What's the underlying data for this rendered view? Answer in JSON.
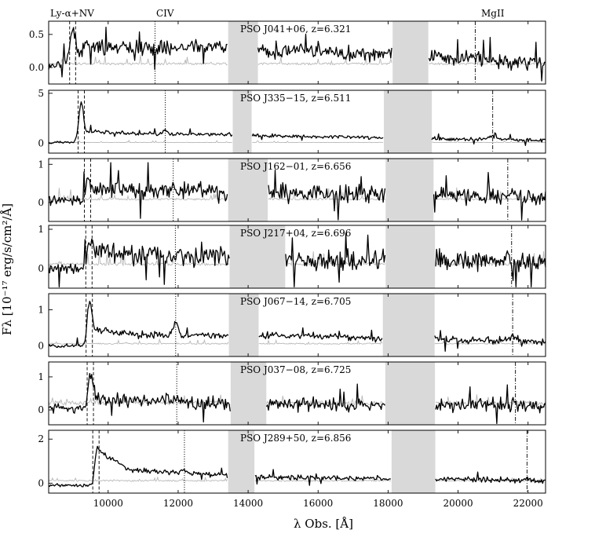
{
  "chart_data": {
    "type": "line",
    "xlabel": "λ Obs. [Å]",
    "ylabel": "Fλ [10⁻¹⁷ erg/s/cm²/Å]",
    "xlim": [
      8300,
      22500
    ],
    "xticks": [
      10000,
      12000,
      14000,
      16000,
      18000,
      20000,
      22000
    ],
    "line_labels": [
      "Ly-α+NV",
      "CIV",
      "MgII"
    ],
    "panels": [
      {
        "name": "PSO J041+06, z=6.321",
        "ylim": [
          -0.25,
          0.7
        ],
        "yticks": [
          0.0,
          0.5
        ],
        "ytick_labels": [
          "0.0",
          "0.5"
        ],
        "lines": [
          8900,
          9070,
          11340,
          20490
        ],
        "gaps": [
          [
            13430,
            14280
          ],
          [
            18130,
            19150
          ]
        ],
        "cont": [
          [
            8300,
            0.0
          ],
          [
            9000,
            0.15
          ],
          [
            9300,
            0.3
          ],
          [
            11000,
            0.3
          ],
          [
            13400,
            0.32
          ],
          [
            14300,
            0.26
          ],
          [
            18000,
            0.21
          ],
          [
            19200,
            0.16
          ],
          [
            22500,
            0.07
          ]
        ],
        "err_level": 0.04,
        "noise": 0.09,
        "lya_peak": 0.45,
        "civ_peak": 0.0,
        "mgii_peak": 0.05
      },
      {
        "name": "PSO J335−15, z=6.511",
        "ylim": [
          -1.0,
          5.3
        ],
        "yticks": [
          0,
          5
        ],
        "ytick_labels": [
          "0",
          "5"
        ],
        "lines": [
          9140,
          9320,
          11630,
          20990
        ],
        "gaps": [
          [
            13560,
            14100
          ],
          [
            17880,
            19250
          ]
        ],
        "cont": [
          [
            8300,
            0.05
          ],
          [
            9000,
            0.1
          ],
          [
            9500,
            1.2
          ],
          [
            11000,
            0.9
          ],
          [
            13500,
            0.85
          ],
          [
            14200,
            0.75
          ],
          [
            17800,
            0.55
          ],
          [
            19300,
            0.45
          ],
          [
            22500,
            0.3
          ]
        ],
        "err_level": 0.05,
        "noise": 0.15,
        "lya_peak": 3.5,
        "civ_peak": 0.5,
        "mgii_peak": 0.3
      },
      {
        "name": "PSO J162−01, z=6.656",
        "ylim": [
          -0.5,
          1.15
        ],
        "yticks": [
          0,
          1
        ],
        "ytick_labels": [
          "0",
          "1"
        ],
        "lines": [
          9320,
          9500,
          11860,
          21420
        ],
        "gaps": [
          [
            13430,
            14560
          ],
          [
            17930,
            19300
          ]
        ],
        "cont": [
          [
            8300,
            0.05
          ],
          [
            9300,
            0.05
          ],
          [
            9500,
            0.35
          ],
          [
            12000,
            0.3
          ],
          [
            13400,
            0.28
          ],
          [
            14600,
            0.25
          ],
          [
            18000,
            0.2
          ],
          [
            19300,
            0.18
          ],
          [
            22500,
            0.15
          ]
        ],
        "err_level": 0.06,
        "noise": 0.2,
        "lya_peak": 0.4,
        "civ_peak": 0.1,
        "mgii_peak": 0.05
      },
      {
        "name": "PSO J217+04, z=6.696",
        "ylim": [
          -0.5,
          1.1
        ],
        "yticks": [
          0,
          1
        ],
        "ytick_labels": [
          "0",
          "1"
        ],
        "lines": [
          9360,
          9540,
          11920,
          21530
        ],
        "gaps": [
          [
            13470,
            15060
          ],
          [
            17930,
            19340
          ]
        ],
        "cont": [
          [
            8300,
            0.0
          ],
          [
            9350,
            0.0
          ],
          [
            9550,
            0.45
          ],
          [
            11000,
            0.35
          ],
          [
            13400,
            0.3
          ],
          [
            15100,
            0.25
          ],
          [
            18000,
            0.2
          ],
          [
            19400,
            0.18
          ],
          [
            22500,
            0.15
          ]
        ],
        "err_level": 0.08,
        "noise": 0.22,
        "lya_peak": 0.3,
        "civ_peak": 0.05,
        "mgii_peak": 0.05
      },
      {
        "name": "PSO J067−14, z=6.705",
        "ylim": [
          -0.3,
          1.45
        ],
        "yticks": [
          0,
          1
        ],
        "ytick_labels": [
          "0",
          "1"
        ],
        "lines": [
          9370,
          9550,
          11930,
          21560
        ],
        "gaps": [
          [
            13450,
            14300
          ],
          [
            17850,
            19330
          ]
        ],
        "cont": [
          [
            8300,
            0.0
          ],
          [
            9350,
            0.0
          ],
          [
            9550,
            0.45
          ],
          [
            11000,
            0.3
          ],
          [
            13400,
            0.28
          ],
          [
            14500,
            0.3
          ],
          [
            18000,
            0.2
          ],
          [
            19400,
            0.18
          ],
          [
            22500,
            0.1
          ]
        ],
        "err_level": 0.04,
        "noise": 0.08,
        "lya_peak": 1.0,
        "civ_peak": 0.35,
        "mgii_peak": 0.12
      },
      {
        "name": "PSO J037−08, z=6.725",
        "ylim": [
          -0.45,
          1.45
        ],
        "yticks": [
          0,
          1
        ],
        "ytick_labels": [
          "0",
          "1"
        ],
        "lines": [
          9400,
          9580,
          11960,
          21640
        ],
        "gaps": [
          [
            13500,
            14520
          ],
          [
            17920,
            19340
          ]
        ],
        "cont": [
          [
            8300,
            0.05
          ],
          [
            9380,
            0.05
          ],
          [
            9580,
            0.35
          ],
          [
            12000,
            0.25
          ],
          [
            13400,
            0.22
          ],
          [
            14600,
            0.18
          ],
          [
            18000,
            0.15
          ],
          [
            19400,
            0.14
          ],
          [
            22500,
            0.1
          ]
        ],
        "err_level": 0.15,
        "noise": 0.18,
        "lya_peak": 0.9,
        "civ_peak": 0.15,
        "mgii_peak": 0.05
      },
      {
        "name": "PSO J289+50, z=6.856",
        "ylim": [
          -0.45,
          2.4
        ],
        "yticks": [
          0,
          2
        ],
        "ytick_labels": [
          "0",
          "2"
        ],
        "lines": [
          9560,
          9740,
          12180,
          21970
        ],
        "gaps": [
          [
            13430,
            14180
          ],
          [
            18100,
            19350
          ]
        ],
        "cont": [
          [
            8300,
            -0.1
          ],
          [
            9550,
            -0.1
          ],
          [
            9700,
            1.5
          ],
          [
            10600,
            0.6
          ],
          [
            13400,
            0.35
          ],
          [
            14200,
            0.3
          ],
          [
            18000,
            0.2
          ],
          [
            19400,
            0.18
          ],
          [
            22500,
            0.12
          ]
        ],
        "err_level": 0.08,
        "noise": 0.1,
        "lya_peak": 0.3,
        "civ_peak": 0.15,
        "mgii_peak": 0.05
      }
    ]
  }
}
